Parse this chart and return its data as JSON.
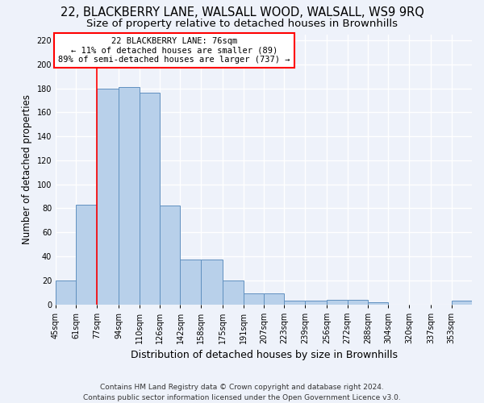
{
  "title": "22, BLACKBERRY LANE, WALSALL WOOD, WALSALL, WS9 9RQ",
  "subtitle": "Size of property relative to detached houses in Brownhills",
  "xlabel": "Distribution of detached houses by size in Brownhills",
  "ylabel": "Number of detached properties",
  "footer_line1": "Contains HM Land Registry data © Crown copyright and database right 2024.",
  "footer_line2": "Contains public sector information licensed under the Open Government Licence v3.0.",
  "annotation_line1": "22 BLACKBERRY LANE: 76sqm",
  "annotation_line2": "← 11% of detached houses are smaller (89)",
  "annotation_line3": "89% of semi-detached houses are larger (737) →",
  "bar_color": "#b8d0ea",
  "bar_edge_color": "#6090c0",
  "red_line_x": 77,
  "bins": [
    45,
    61,
    77,
    94,
    110,
    126,
    142,
    158,
    175,
    191,
    207,
    223,
    239,
    256,
    272,
    288,
    304,
    320,
    337,
    353,
    369
  ],
  "values": [
    20,
    83,
    180,
    181,
    176,
    82,
    37,
    37,
    20,
    9,
    9,
    3,
    3,
    4,
    4,
    2,
    0,
    0,
    0,
    3
  ],
  "ylim": [
    0,
    225
  ],
  "yticks": [
    0,
    20,
    40,
    60,
    80,
    100,
    120,
    140,
    160,
    180,
    200,
    220
  ],
  "background_color": "#eef2fa",
  "grid_color": "#ffffff",
  "title_fontsize": 10.5,
  "subtitle_fontsize": 9.5,
  "ylabel_fontsize": 8.5,
  "xlabel_fontsize": 9,
  "tick_fontsize": 7,
  "footer_fontsize": 6.5,
  "annotation_fontsize": 7.5
}
